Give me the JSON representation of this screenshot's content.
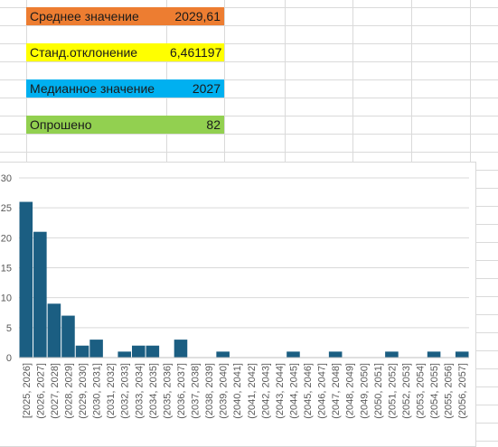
{
  "stats": [
    {
      "label": "Среднее значение",
      "value": "2029,61",
      "color": "#ed7d31"
    },
    {
      "label": "Станд.отклонение",
      "value": "6,461197",
      "color": "#ffff00"
    },
    {
      "label": "Медианное значение",
      "value": "2027",
      "color": "#00b0f0"
    },
    {
      "label": "Опрошено",
      "value": "82",
      "color": "#92d050"
    }
  ],
  "chart_data": {
    "type": "bar",
    "title": "",
    "xlabel": "",
    "ylabel": "",
    "ylim": [
      0,
      30
    ],
    "yticks": [
      "0",
      "5",
      "10",
      "15",
      "20",
      "25",
      "30"
    ],
    "bar_color": "#1b5e82",
    "grid": true,
    "categories": [
      "[2025, 2026]",
      "(2026, 2027]",
      "(2027, 2028]",
      "(2028, 2029]",
      "(2029, 2030]",
      "(2030, 2031]",
      "(2031, 2032]",
      "(2032, 2033]",
      "(2033, 2034]",
      "(2034, 2035]",
      "(2035, 2036]",
      "(2036, 2037]",
      "(2037, 2038]",
      "(2038, 2039]",
      "(2039, 2040]",
      "(2040, 2041]",
      "(2041, 2042]",
      "(2042, 2043]",
      "(2043, 2044]",
      "(2044, 2045]",
      "(2045, 2046]",
      "(2046, 2047]",
      "(2047, 2048]",
      "(2048, 2049]",
      "(2049, 2050]",
      "(2050, 2051]",
      "(2051, 2052]",
      "(2052, 2053]",
      "(2053, 2054]",
      "(2054, 2055]",
      "(2055, 2056]",
      "(2056, 2057]"
    ],
    "values": [
      26,
      21,
      9,
      7,
      2,
      3,
      0,
      1,
      2,
      2,
      0,
      3,
      0,
      0,
      1,
      0,
      0,
      0,
      0,
      1,
      0,
      0,
      1,
      0,
      0,
      0,
      1,
      0,
      0,
      1,
      0,
      1
    ]
  }
}
